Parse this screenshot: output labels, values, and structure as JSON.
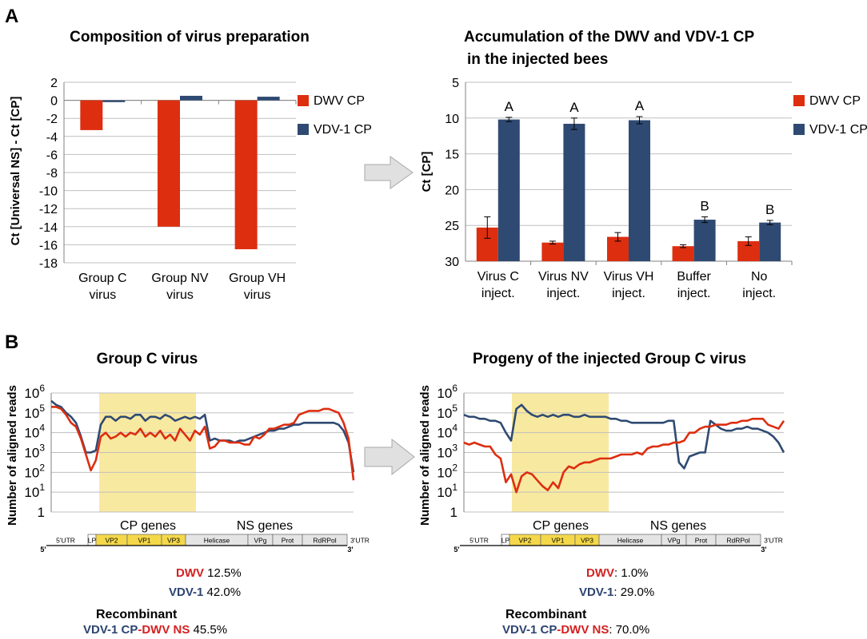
{
  "panels": {
    "A": "A",
    "B": "B"
  },
  "colors": {
    "dwv": "#DD2E10",
    "vdv": "#2F4A72",
    "dwv_text": "#D42020",
    "vdv_text": "#2D4470",
    "cp_region": "#F8E9A0",
    "gene_cp": "#F4D84A",
    "gene_ns": "#E4E4E4",
    "grid": "#BFBFBF",
    "arrow": "#D8D8D8"
  },
  "chart_data": [
    {
      "id": "composition",
      "type": "bar",
      "title": "Composition of virus preparation",
      "ylabel": "Ct [Universal NS] - Ct [CP]",
      "xlabel": "",
      "ylim": [
        -18,
        2
      ],
      "yticks": [
        2,
        0,
        -2,
        -4,
        -6,
        -8,
        -10,
        -12,
        -14,
        -16,
        -18
      ],
      "grid": true,
      "legend": "right",
      "categories": [
        [
          "Group C",
          "virus"
        ],
        [
          "Group NV",
          "virus"
        ],
        [
          "Group VH",
          "virus"
        ]
      ],
      "series": [
        {
          "name": "DWV CP",
          "color": "#DD2E10",
          "values": [
            -3.3,
            -14.0,
            -16.5
          ]
        },
        {
          "name": "VDV-1 CP",
          "color": "#2F4A72",
          "values": [
            -0.2,
            0.5,
            0.4
          ]
        }
      ]
    },
    {
      "id": "accumulation",
      "type": "bar",
      "title": [
        "Accumulation of the DWV and VDV-1 CP",
        "in the  injected bees"
      ],
      "ylabel": "Ct [CP]",
      "xlabel": "",
      "ylim": [
        5,
        30
      ],
      "y_inverted": true,
      "yticks": [
        5,
        10,
        15,
        20,
        25,
        30
      ],
      "grid": true,
      "legend": "right",
      "categories": [
        [
          "Virus C",
          "inject."
        ],
        [
          "Virus NV",
          "inject."
        ],
        [
          "Virus VH",
          "inject."
        ],
        [
          "Buffer",
          "inject."
        ],
        [
          "No",
          "inject."
        ]
      ],
      "series": [
        {
          "name": "DWV CP",
          "color": "#DD2E10",
          "values": [
            25.3,
            27.4,
            26.6,
            27.9,
            27.2
          ],
          "errors": [
            1.5,
            0.2,
            0.6,
            0.2,
            0.6
          ]
        },
        {
          "name": "VDV-1 CP",
          "color": "#2F4A72",
          "values": [
            10.2,
            10.8,
            10.3,
            24.2,
            24.6
          ],
          "errors": [
            0.3,
            0.8,
            0.5,
            0.4,
            0.3
          ]
        }
      ],
      "annotations": [
        "A",
        "A",
        "A",
        "B",
        "B"
      ]
    },
    {
      "id": "coverage-group-c",
      "type": "line",
      "title": "Group C virus",
      "ylabel": "Number of aligned reads",
      "xlabel": "",
      "y_scale": "log",
      "ylim": [
        1,
        1000000
      ],
      "ytick_labels": [
        "10",
        "10",
        "10",
        "10",
        "10",
        "10",
        "1"
      ],
      "ytick_exponents": [
        "6",
        "5",
        "4",
        "3",
        "2",
        "1",
        ""
      ],
      "grid": true,
      "region_labels": [
        "CP genes",
        "NS genes"
      ],
      "series": [
        {
          "name": "DWV",
          "color": "#DD2E10",
          "values": [
            5.3,
            5.3,
            5.2,
            4.9,
            4.5,
            4.3,
            3.7,
            2.9,
            2.1,
            2.6,
            3.8,
            4.0,
            3.7,
            3.8,
            4.0,
            3.8,
            4.0,
            3.9,
            4.2,
            3.8,
            4.0,
            3.8,
            4.1,
            3.7,
            3.9,
            3.6,
            4.2,
            3.9,
            3.6,
            4.1,
            3.9,
            4.3,
            3.2,
            3.3,
            3.6,
            3.6,
            3.5,
            3.5,
            3.5,
            3.4,
            3.4,
            3.8,
            3.7,
            3.9,
            4.2,
            4.2,
            4.3,
            4.4,
            4.4,
            4.5,
            4.9,
            5.0,
            5.1,
            5.1,
            5.1,
            5.2,
            5.2,
            5.1,
            5.0,
            4.5,
            3.7,
            1.6
          ]
        },
        {
          "name": "VDV-1",
          "color": "#2F4A72",
          "values": [
            5.6,
            5.4,
            5.3,
            5.0,
            4.8,
            4.5,
            3.8,
            3.0,
            3.0,
            3.1,
            4.4,
            4.8,
            4.8,
            4.6,
            4.8,
            4.8,
            4.7,
            4.9,
            4.9,
            4.6,
            4.8,
            4.8,
            4.7,
            4.9,
            4.8,
            4.6,
            4.7,
            4.8,
            4.7,
            4.8,
            4.7,
            4.9,
            3.6,
            3.7,
            3.6,
            3.6,
            3.6,
            3.5,
            3.6,
            3.6,
            3.7,
            3.8,
            3.9,
            4.0,
            4.1,
            4.1,
            4.2,
            4.2,
            4.3,
            4.4,
            4.4,
            4.5,
            4.5,
            4.5,
            4.5,
            4.5,
            4.5,
            4.5,
            4.4,
            4.1,
            3.5,
            2.0
          ]
        }
      ],
      "genome_labels": [
        "5'UTR",
        "LP",
        "VP2",
        "VP1",
        "VP3",
        "Helicase",
        "VPg",
        "Prot",
        "RdRPol",
        "3'UTR"
      ],
      "genome_ends": [
        "5'",
        "3'"
      ],
      "stats": {
        "dwv_label": "DWV",
        "dwv_value": " 12.5%",
        "vdv_label": "VDV-1",
        "vdv_value": " 42.0%",
        "recombinant_title": "Recombinant",
        "recombinant_vdv": "VDV-1 CP",
        "recombinant_dash": "-",
        "recombinant_dwv": "DWV NS",
        "recombinant_value": " 45.5%"
      }
    },
    {
      "id": "coverage-progeny",
      "type": "line",
      "title": "Progeny of the injected Group C virus",
      "ylabel": "Number of aligned reads",
      "xlabel": "",
      "y_scale": "log",
      "ylim": [
        1,
        1000000
      ],
      "ytick_labels": [
        "10",
        "10",
        "10",
        "10",
        "10",
        "10",
        "1"
      ],
      "ytick_exponents": [
        "6",
        "5",
        "4",
        "3",
        "2",
        "1",
        ""
      ],
      "grid": true,
      "region_labels": [
        "CP genes",
        "NS genes"
      ],
      "series": [
        {
          "name": "DWV",
          "color": "#DD2E10",
          "values": [
            3.5,
            3.4,
            3.5,
            3.4,
            3.3,
            3.3,
            2.9,
            2.7,
            1.5,
            1.9,
            1.0,
            1.8,
            2.0,
            1.9,
            1.6,
            1.3,
            1.1,
            1.5,
            1.2,
            2.0,
            2.3,
            2.2,
            2.4,
            2.5,
            2.5,
            2.6,
            2.7,
            2.7,
            2.7,
            2.8,
            2.9,
            2.9,
            2.9,
            3.0,
            2.9,
            3.2,
            3.3,
            3.3,
            3.4,
            3.4,
            3.5,
            3.5,
            3.6,
            4.0,
            4.0,
            4.2,
            4.3,
            4.3,
            4.4,
            4.4,
            4.4,
            4.5,
            4.5,
            4.6,
            4.6,
            4.7,
            4.7,
            4.7,
            4.4,
            4.3,
            4.2,
            4.6
          ]
        },
        {
          "name": "VDV-1",
          "color": "#2F4A72",
          "values": [
            4.9,
            4.8,
            4.8,
            4.7,
            4.7,
            4.6,
            4.6,
            4.5,
            4.0,
            3.6,
            5.2,
            5.4,
            5.1,
            4.9,
            4.8,
            4.9,
            4.8,
            4.9,
            4.8,
            4.9,
            4.9,
            4.8,
            4.8,
            4.9,
            4.8,
            4.8,
            4.8,
            4.8,
            4.7,
            4.7,
            4.6,
            4.6,
            4.5,
            4.5,
            4.5,
            4.5,
            4.5,
            4.5,
            4.5,
            4.6,
            4.6,
            2.5,
            2.2,
            2.8,
            2.9,
            3.0,
            3.0,
            4.6,
            4.4,
            4.2,
            4.1,
            4.1,
            4.2,
            4.2,
            4.3,
            4.2,
            4.2,
            4.1,
            4.0,
            3.8,
            3.5,
            3.0
          ]
        }
      ],
      "genome_labels": [
        "5'UTR",
        "LP",
        "VP2",
        "VP1",
        "VP3",
        "Helicase",
        "VPg",
        "Prot",
        "RdRPol",
        "3'UTR"
      ],
      "genome_ends": [
        "5'",
        "3'"
      ],
      "stats": {
        "dwv_label": "DWV",
        "dwv_value": ":  1.0%",
        "vdv_label": "VDV-1",
        "vdv_value": ": 29.0%",
        "recombinant_title": "Recombinant",
        "recombinant_vdv": "VDV-1 CP",
        "recombinant_dash": "-",
        "recombinant_dwv": "DWV NS",
        "recombinant_value": ": 70.0%"
      }
    }
  ]
}
